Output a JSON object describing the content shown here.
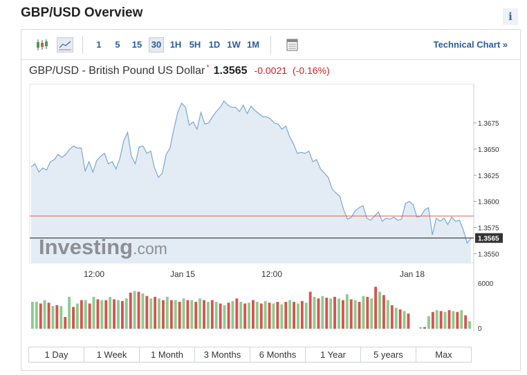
{
  "header": {
    "title": "GBP/USD Overview",
    "info_label": "i"
  },
  "toolbar": {
    "timeframes": [
      {
        "label": "1",
        "active": false
      },
      {
        "label": "5",
        "active": false
      },
      {
        "label": "15",
        "active": false
      },
      {
        "label": "30",
        "active": true
      },
      {
        "label": "1H",
        "active": false
      },
      {
        "label": "5H",
        "active": false
      },
      {
        "label": "1D",
        "active": false
      },
      {
        "label": "1W",
        "active": false
      },
      {
        "label": "1M",
        "active": false
      }
    ],
    "technical_chart_label": "Technical Chart »"
  },
  "quote": {
    "name": "GBP/USD - British Pound US Dollar",
    "star": "*",
    "last": "1.3565",
    "change": "-0.0021",
    "change_pct": "(-0.16%)"
  },
  "colors": {
    "line": "#7aa7d1",
    "area": "#e3ecf4",
    "reference": "#e05a4e",
    "up": "#8dcc8f",
    "down": "#d9534f",
    "link": "#2a5d9a",
    "last_badge": "#333333"
  },
  "watermark": {
    "main": "Investing",
    "suffix": ".com"
  },
  "chart_data": {
    "type": "area",
    "x_tick_labels": [
      "12:00",
      "Jan 15",
      "12:00",
      "Jan 18"
    ],
    "y_ticks": [
      1.3675,
      1.365,
      1.3625,
      1.36,
      1.3575,
      1.355
    ],
    "y_tick_labels": [
      "1.3675",
      "1.3650",
      "1.3625",
      "1.3600",
      "1.3575",
      "1.3550"
    ],
    "ylim": [
      1.3541,
      1.3712
    ],
    "prev_close": 1.3586,
    "last_value": 1.3565,
    "last_label": "1.3565",
    "values": [
      1.3633,
      1.3636,
      1.3628,
      1.3632,
      1.363,
      1.3638,
      1.364,
      1.3645,
      1.3642,
      1.3645,
      1.365,
      1.3653,
      1.3651,
      1.3651,
      1.3629,
      1.3638,
      1.3628,
      1.3639,
      1.3643,
      1.3646,
      1.3636,
      1.3638,
      1.3631,
      1.3641,
      1.3658,
      1.3666,
      1.3643,
      1.3636,
      1.3652,
      1.3653,
      1.3646,
      1.3648,
      1.3632,
      1.3623,
      1.3627,
      1.3645,
      1.3651,
      1.3669,
      1.3685,
      1.3694,
      1.369,
      1.3673,
      1.3676,
      1.3669,
      1.3685,
      1.3674,
      1.3675,
      1.3681,
      1.3686,
      1.369,
      1.3696,
      1.3692,
      1.369,
      1.369,
      1.3686,
      1.3692,
      1.3684,
      1.3691,
      1.3687,
      1.3684,
      1.3681,
      1.3681,
      1.3679,
      1.3675,
      1.3674,
      1.3669,
      1.3672,
      1.3662,
      1.3655,
      1.3646,
      1.3647,
      1.3646,
      1.3648,
      1.3638,
      1.364,
      1.3631,
      1.3627,
      1.3623,
      1.3612,
      1.3608,
      1.3605,
      1.3592,
      1.3583,
      1.3585,
      1.3591,
      1.3594,
      1.3596,
      1.3584,
      1.3582,
      1.3586,
      1.359,
      1.3581,
      1.3584,
      1.3583,
      1.3585,
      1.3582,
      1.3583,
      1.3598,
      1.36,
      1.3597,
      1.3585,
      1.3586,
      1.3592,
      1.3594,
      1.3568,
      1.3584,
      1.3581,
      1.3584,
      1.3578,
      1.3585,
      1.3581,
      1.3582,
      1.3573,
      1.356,
      1.3565
    ],
    "volume_axis_labels": [
      "6000",
      "0"
    ],
    "volume_max": 6000,
    "volume": [
      {
        "v": 3200,
        "up": true
      },
      {
        "v": 3200,
        "up": true
      },
      {
        "v": 3000,
        "up": false
      },
      {
        "v": 3400,
        "up": true
      },
      {
        "v": 3100,
        "up": false
      },
      {
        "v": 2700,
        "up": true
      },
      {
        "v": 2800,
        "up": false
      },
      {
        "v": 2700,
        "up": true
      },
      {
        "v": 1400,
        "up": false
      },
      {
        "v": 3800,
        "up": true
      },
      {
        "v": 2600,
        "up": false
      },
      {
        "v": 3000,
        "up": true
      },
      {
        "v": 3400,
        "up": false
      },
      {
        "v": 3400,
        "up": true
      },
      {
        "v": 3000,
        "up": false
      },
      {
        "v": 3800,
        "up": true
      },
      {
        "v": 3500,
        "up": false
      },
      {
        "v": 3400,
        "up": true
      },
      {
        "v": 3400,
        "up": false
      },
      {
        "v": 3800,
        "up": true
      },
      {
        "v": 3500,
        "up": false
      },
      {
        "v": 3400,
        "up": true
      },
      {
        "v": 3300,
        "up": false
      },
      {
        "v": 3600,
        "up": true
      },
      {
        "v": 4300,
        "up": false
      },
      {
        "v": 4500,
        "up": true
      },
      {
        "v": 4400,
        "up": false
      },
      {
        "v": 4200,
        "up": true
      },
      {
        "v": 3900,
        "up": false
      },
      {
        "v": 3600,
        "up": true
      },
      {
        "v": 3800,
        "up": false
      },
      {
        "v": 3600,
        "up": true
      },
      {
        "v": 3400,
        "up": false
      },
      {
        "v": 3800,
        "up": true
      },
      {
        "v": 3400,
        "up": false
      },
      {
        "v": 3400,
        "up": true
      },
      {
        "v": 3200,
        "up": false
      },
      {
        "v": 3600,
        "up": true
      },
      {
        "v": 3400,
        "up": false
      },
      {
        "v": 3400,
        "up": true
      },
      {
        "v": 3200,
        "up": false
      },
      {
        "v": 3600,
        "up": true
      },
      {
        "v": 3400,
        "up": false
      },
      {
        "v": 3200,
        "up": true
      },
      {
        "v": 3400,
        "up": false
      },
      {
        "v": 3200,
        "up": true
      },
      {
        "v": 3000,
        "up": false
      },
      {
        "v": 2800,
        "up": true
      },
      {
        "v": 3100,
        "up": false
      },
      {
        "v": 3300,
        "up": true
      },
      {
        "v": 3600,
        "up": false
      },
      {
        "v": 3200,
        "up": true
      },
      {
        "v": 3000,
        "up": false
      },
      {
        "v": 3100,
        "up": true
      },
      {
        "v": 3400,
        "up": false
      },
      {
        "v": 3200,
        "up": true
      },
      {
        "v": 3000,
        "up": false
      },
      {
        "v": 3300,
        "up": true
      },
      {
        "v": 3100,
        "up": false
      },
      {
        "v": 3000,
        "up": true
      },
      {
        "v": 3200,
        "up": false
      },
      {
        "v": 2900,
        "up": true
      },
      {
        "v": 3200,
        "up": false
      },
      {
        "v": 3400,
        "up": true
      },
      {
        "v": 3200,
        "up": false
      },
      {
        "v": 3000,
        "up": true
      },
      {
        "v": 3300,
        "up": false
      },
      {
        "v": 3100,
        "up": true
      },
      {
        "v": 4400,
        "up": false
      },
      {
        "v": 3800,
        "up": true
      },
      {
        "v": 3600,
        "up": false
      },
      {
        "v": 3900,
        "up": true
      },
      {
        "v": 3700,
        "up": false
      },
      {
        "v": 3600,
        "up": true
      },
      {
        "v": 3800,
        "up": false
      },
      {
        "v": 3600,
        "up": true
      },
      {
        "v": 3400,
        "up": false
      },
      {
        "v": 4100,
        "up": true
      },
      {
        "v": 3500,
        "up": false
      },
      {
        "v": 3400,
        "up": true
      },
      {
        "v": 3200,
        "up": false
      },
      {
        "v": 3900,
        "up": true
      },
      {
        "v": 3800,
        "up": false
      },
      {
        "v": 3600,
        "up": true
      },
      {
        "v": 5000,
        "up": false
      },
      {
        "v": 4400,
        "up": true
      },
      {
        "v": 4000,
        "up": false
      },
      {
        "v": 3400,
        "up": true
      },
      {
        "v": 2800,
        "up": false
      },
      {
        "v": 2500,
        "up": true
      },
      {
        "v": 2300,
        "up": false
      },
      {
        "v": 2100,
        "up": true
      },
      {
        "v": 1800,
        "up": false
      },
      {
        "v": 0,
        "up": true
      },
      {
        "v": 0,
        "up": false
      },
      {
        "v": 200,
        "up": true
      },
      {
        "v": 200,
        "up": false
      },
      {
        "v": 1500,
        "up": true
      },
      {
        "v": 2000,
        "up": false
      },
      {
        "v": 2200,
        "up": true
      },
      {
        "v": 2100,
        "up": false
      },
      {
        "v": 2000,
        "up": true
      },
      {
        "v": 2200,
        "up": false
      },
      {
        "v": 2100,
        "up": true
      },
      {
        "v": 2000,
        "up": false
      },
      {
        "v": 2200,
        "up": true
      },
      {
        "v": 1600,
        "up": false
      },
      {
        "v": 900,
        "up": true
      }
    ]
  },
  "range_buttons": [
    "1 Day",
    "1 Week",
    "1 Month",
    "3 Months",
    "6 Months",
    "1 Year",
    "5 years",
    "Max"
  ]
}
